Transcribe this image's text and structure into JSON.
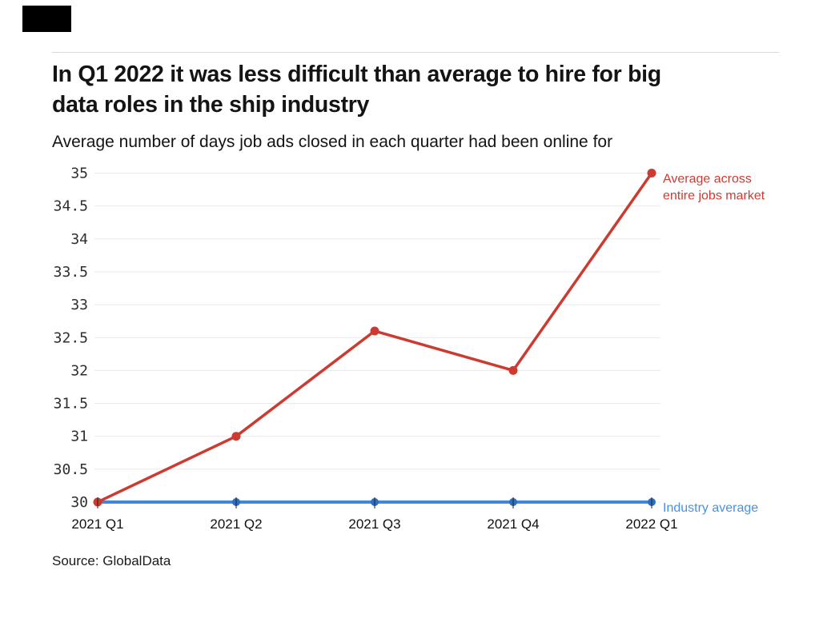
{
  "header": {
    "title_lines": [
      "In Q1 2022 it was less difficult than average to hire for big",
      "data roles in the ship industry"
    ],
    "subtitle": "Average number of days job ads closed in each quarter had been online for"
  },
  "source_note": "Source: GlobalData",
  "chart_data": {
    "type": "line",
    "title": "In Q1 2022 it was less difficult than average to hire for big data roles in the ship industry",
    "subtitle": "Average number of days job ads closed in each quarter had been online for",
    "categories": [
      "2021 Q1",
      "2021 Q2",
      "2021 Q3",
      "2021 Q4",
      "2022 Q1"
    ],
    "series": [
      {
        "name": "Average across entire jobs market",
        "label_lines": [
          "Average across",
          "entire jobs market"
        ],
        "values": [
          30,
          31,
          32.6,
          32,
          35
        ],
        "color": "#cc3b31",
        "marker_color": "#cc3b31",
        "label_color": "#cc3b31"
      },
      {
        "name": "Industry average",
        "label_lines": [
          "Industry average"
        ],
        "values": [
          30,
          30,
          30,
          30,
          30
        ],
        "color": "#3f87da",
        "marker_color": "#2d6fc2",
        "label_color": "#4a90e2"
      }
    ],
    "ylim": [
      30,
      35
    ],
    "yticks": [
      30,
      30.5,
      31,
      31.5,
      32,
      32.5,
      33,
      33.5,
      34,
      34.5,
      35
    ],
    "ytick_labels": [
      "30",
      "30.5",
      "31",
      "31.5",
      "32",
      "32.5",
      "33",
      "33.5",
      "34",
      "34.5",
      "35"
    ],
    "xlabel": "",
    "ylabel": "",
    "grid": "horizontal",
    "grid_color": "#eaeaea",
    "tick_color": "#222222",
    "legend_position": "right-of-line-end"
  }
}
